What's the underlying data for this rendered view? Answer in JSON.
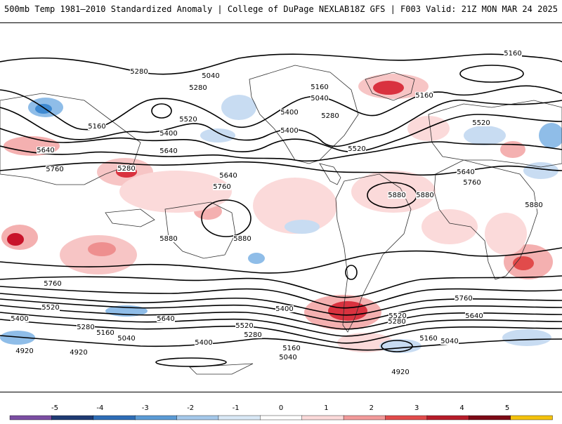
{
  "header": {
    "left_title": "500mb Temp 1981–2010 Standardized Anomaly | College of DuPage NEXLAB",
    "right_title": "18Z GFS | F003 Valid: 21Z MON MAR 24 2025"
  },
  "map": {
    "projection": "global-cylindrical",
    "contour_labels": [
      "5160",
      "5280",
      "5040",
      "5160",
      "5280",
      "5400",
      "5520",
      "5640",
      "5760",
      "5880",
      "5400",
      "5520",
      "5280",
      "5160",
      "5040",
      "4920",
      "5640",
      "5280",
      "5400",
      "5160",
      "5520",
      "5640",
      "5760",
      "5880",
      "5880",
      "5760",
      "5640",
      "5520",
      "5400",
      "5280",
      "5160",
      "5040",
      "4920",
      "5880",
      "5760",
      "5640",
      "5520",
      "5400",
      "5280",
      "5160",
      "5040",
      "4920",
      "5400",
      "5280",
      "5160",
      "5040",
      "5520",
      "5640",
      "5760",
      "5880"
    ],
    "colors": {
      "strong_positive": "#c8142a",
      "positive": "#f08f8f",
      "weak_positive": "#fbdada",
      "weak_negative": "#d5e5f6",
      "negative": "#8fbde8",
      "strong_negative": "#3f8ad2",
      "contour": "#000000",
      "boundaries": "#303030"
    }
  },
  "colorbar": {
    "ticks": [
      "-5",
      "-4",
      "-3",
      "-2",
      "-1",
      "0",
      "1",
      "2",
      "3",
      "4",
      "5"
    ],
    "colors": [
      "#7b4ea3",
      "#1f3b74",
      "#2e6db7",
      "#5b9bd5",
      "#a5c8ea",
      "#d9e8f6",
      "#ffffff",
      "#fbdada",
      "#f29a9a",
      "#e14b4b",
      "#b71c2a",
      "#7d0a16",
      "#f4c20d"
    ]
  }
}
